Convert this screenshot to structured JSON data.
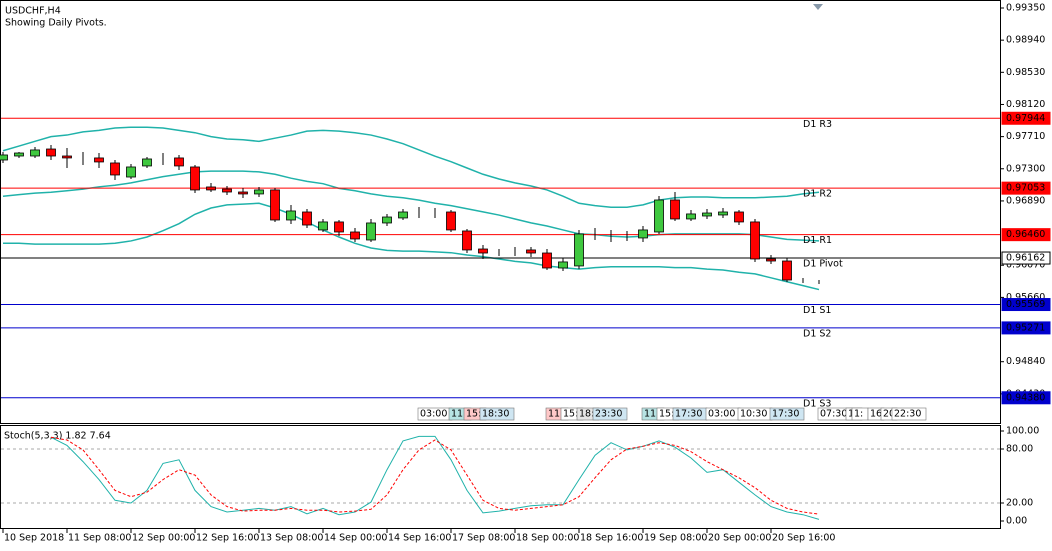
{
  "chart_data": [
    {
      "type": "candlestick",
      "title": "USDCHF,H4",
      "subtitle": "Showing Daily Pivots.",
      "categories": [
        "10 Sep 2018",
        null,
        null,
        null,
        "11 Sep 08:00",
        null,
        null,
        null,
        "12 Sep 00:00",
        null,
        null,
        null,
        "12 Sep 16:00",
        null,
        null,
        null,
        "13 Sep 08:00",
        null,
        null,
        null,
        "14 Sep 00:00",
        null,
        null,
        null,
        "14 Sep 16:00",
        null,
        null,
        null,
        "17 Sep 08:00",
        null,
        null,
        null,
        "18 Sep 00:00",
        null,
        null,
        null,
        "18 Sep 16:00",
        null,
        null,
        null,
        "19 Sep 08:00",
        null,
        null,
        null,
        "20 Sep 00:00",
        null,
        null,
        null,
        "20 Sep 16:00",
        null,
        null,
        null
      ],
      "open": [
        0.97412,
        0.97463,
        0.97463,
        0.97552,
        0.97463,
        0.97438,
        0.97438,
        0.97374,
        0.97195,
        0.97336,
        0.97438,
        0.97438,
        0.97323,
        0.97068,
        0.97042,
        0.97004,
        0.96979,
        0.9703,
        0.96647,
        0.96749,
        0.9652,
        0.96622,
        0.96494,
        0.96392,
        0.96609,
        0.96673,
        0.96749,
        0.96736,
        0.96749,
        0.96507,
        0.96277,
        0.96239,
        0.96252,
        0.96265,
        0.96226,
        0.96035,
        0.96061,
        0.96469,
        0.96443,
        0.96443,
        0.96418,
        0.96494,
        0.96902,
        0.9666,
        0.96698,
        0.96711,
        0.96749,
        0.96622,
        0.9615,
        0.96124,
        0.95869,
        0.95857
      ],
      "high": [
        0.97514,
        0.97514,
        0.97578,
        0.97603,
        0.97565,
        0.97514,
        0.97501,
        0.97412,
        0.97361,
        0.9745,
        0.97501,
        0.97476,
        0.97348,
        0.97119,
        0.97081,
        0.97055,
        0.97068,
        0.97055,
        0.96838,
        0.96787,
        0.9666,
        0.96647,
        0.96545,
        0.9666,
        0.96724,
        0.96787,
        0.96813,
        0.968,
        0.96775,
        0.96532,
        0.96328,
        0.96277,
        0.96303,
        0.96303,
        0.96277,
        0.96163,
        0.9652,
        0.96545,
        0.9652,
        0.96507,
        0.96571,
        0.96953,
        0.97004,
        0.96775,
        0.96787,
        0.968,
        0.96775,
        0.9666,
        0.96201,
        0.96163,
        0.95908,
        0.95882
      ],
      "low": [
        0.97374,
        0.97438,
        0.97438,
        0.97412,
        0.9731,
        0.97348,
        0.9731,
        0.97157,
        0.9717,
        0.9731,
        0.97348,
        0.97285,
        0.96991,
        0.97004,
        0.96966,
        0.96928,
        0.9694,
        0.96622,
        0.96596,
        0.96545,
        0.96494,
        0.96443,
        0.96367,
        0.96367,
        0.96571,
        0.96647,
        0.96673,
        0.96673,
        0.96494,
        0.96226,
        0.9615,
        0.96188,
        0.96188,
        0.96175,
        0.9601,
        0.95997,
        0.96022,
        0.96392,
        0.96367,
        0.96379,
        0.96367,
        0.96469,
        0.96634,
        0.96634,
        0.9666,
        0.96673,
        0.96583,
        0.96112,
        0.96086,
        0.95857,
        0.95844,
        0.95831
      ],
      "close": [
        0.97476,
        0.97501,
        0.9754,
        0.97463,
        0.97438,
        0.97438,
        0.97387,
        0.97221,
        0.97323,
        0.97425,
        0.97438,
        0.97336,
        0.9703,
        0.9703,
        0.97004,
        0.96979,
        0.9703,
        0.96647,
        0.96762,
        0.96583,
        0.96622,
        0.96494,
        0.96405,
        0.96609,
        0.96685,
        0.96749,
        0.96749,
        0.96736,
        0.9652,
        0.96265,
        0.96226,
        0.96239,
        0.96252,
        0.96226,
        0.96035,
        0.96112,
        0.96469,
        0.96469,
        0.96443,
        0.96443,
        0.9652,
        0.96902,
        0.9666,
        0.96724,
        0.96736,
        0.96749,
        0.96622,
        0.9615,
        0.96124,
        0.95882,
        0.95869,
        0.95857
      ],
      "up_color": "#3fc83f",
      "down_color": "#ff0000",
      "series": [
        {
          "color": "#20b2aa",
          "values": [
            0.9753,
            0.9759,
            0.9765,
            0.9771,
            0.9773,
            0.9777,
            0.9779,
            0.9782,
            0.9783,
            0.9783,
            0.9782,
            0.9779,
            0.9776,
            0.9771,
            0.9768,
            0.9767,
            0.9765,
            0.9769,
            0.9773,
            0.9778,
            0.9779,
            0.9778,
            0.9776,
            0.9773,
            0.9768,
            0.9762,
            0.9754,
            0.9746,
            0.9739,
            0.9731,
            0.9723,
            0.9717,
            0.9712,
            0.9708,
            0.9703,
            0.9695,
            0.9686,
            0.9683,
            0.9681,
            0.9681,
            0.9684,
            0.969,
            0.9693,
            0.9694,
            0.9694,
            0.9693,
            0.9693,
            0.9693,
            0.9694,
            0.9695,
            0.9698,
            0.97
          ]
        },
        {
          "color": "#20b2aa",
          "values": [
            0.9695,
            0.9697,
            0.9699,
            0.97,
            0.9702,
            0.9704,
            0.9707,
            0.9709,
            0.9712,
            0.9716,
            0.972,
            0.9723,
            0.9726,
            0.9727,
            0.9727,
            0.9727,
            0.9726,
            0.9723,
            0.9718,
            0.9714,
            0.9711,
            0.9705,
            0.9702,
            0.9698,
            0.9695,
            0.9693,
            0.969,
            0.9686,
            0.9683,
            0.9679,
            0.9675,
            0.9671,
            0.9666,
            0.9661,
            0.9657,
            0.9652,
            0.9647,
            0.9646,
            0.9644,
            0.9643,
            0.9644,
            0.9646,
            0.9647,
            0.9647,
            0.9647,
            0.9647,
            0.9647,
            0.9646,
            0.9643,
            0.964,
            0.9639,
            0.9638
          ]
        },
        {
          "color": "#20b2aa",
          "values": [
            0.9635,
            0.9635,
            0.9634,
            0.9634,
            0.9634,
            0.9634,
            0.9634,
            0.9635,
            0.9638,
            0.9643,
            0.9651,
            0.966,
            0.9672,
            0.968,
            0.9684,
            0.9685,
            0.9686,
            0.968,
            0.9672,
            0.9662,
            0.9652,
            0.9643,
            0.9635,
            0.9629,
            0.9626,
            0.9625,
            0.9625,
            0.9624,
            0.9623,
            0.962,
            0.9618,
            0.9615,
            0.9612,
            0.961,
            0.9606,
            0.9604,
            0.9602,
            0.9604,
            0.9605,
            0.9605,
            0.9605,
            0.9605,
            0.9604,
            0.9604,
            0.9602,
            0.9601,
            0.9598,
            0.9596,
            0.9591,
            0.9586,
            0.9581,
            0.9576
          ]
        }
      ],
      "levels": {
        "names": [
          "D1 R3",
          "D1 R2",
          "D1 R1",
          "D1 Pivot",
          "D1 S1",
          "D1 S2",
          "D1 S3"
        ],
        "values": [
          0.97944,
          0.97053,
          0.9646,
          0.96162,
          0.95569,
          0.95271,
          0.9438
        ],
        "value_labels": [
          "0.97944",
          "0.97053",
          "0.96460",
          "0.96162",
          "0.95569",
          "0.95271",
          "0.94380"
        ],
        "colors": [
          "#ff0000",
          "#ff0000",
          "#ff0000",
          "#000000",
          "#0000cd",
          "#0000cd",
          "#0000cd"
        ]
      },
      "time_markers": [
        {
          "text": "03:00",
          "color": "#ffffff"
        },
        {
          "text": "11:",
          "color": "#b7e3e3"
        },
        {
          "text": "15:",
          "color": "#ffc8c8"
        },
        {
          "text": "18:30",
          "color": "#cfe6f2"
        },
        {
          "text": "11:",
          "color": "#ffc8c8"
        },
        {
          "text": "15:",
          "color": "#ffffff"
        },
        {
          "text": "18:",
          "color": "#e6e6e6"
        },
        {
          "text": "23:30",
          "color": "#cfe6f2"
        },
        {
          "text": "11:",
          "color": "#b7e3e3"
        },
        {
          "text": "15:",
          "color": "#ffffff"
        },
        {
          "text": "17:30",
          "color": "#cfe6f2"
        },
        {
          "text": "03:00",
          "color": "#ffffff"
        },
        {
          "text": "10:30",
          "color": "#ffffff"
        },
        {
          "text": "17:30",
          "color": "#cfe6f2"
        },
        {
          "text": "07:30",
          "color": "#ffffff"
        },
        {
          "text": "1:",
          "color": "#ffffff"
        },
        {
          "text": "1:",
          "color": "#ffffff"
        },
        {
          "text": "16",
          "color": "#ffffff"
        },
        {
          "text": "20",
          "color": "#ffffff"
        },
        {
          "text": "22:30",
          "color": "#ffffff"
        }
      ],
      "ylim": [
        0.94084,
        0.99452
      ],
      "yticks": [
        {
          "value": 0.9935,
          "label": "0.99350"
        },
        {
          "value": 0.9894,
          "label": "0.98940"
        },
        {
          "value": 0.9853,
          "label": "0.98530"
        },
        {
          "value": 0.9812,
          "label": "0.98120"
        },
        {
          "value": 0.9771,
          "label": "0.97710"
        },
        {
          "value": 0.973,
          "label": "0.97300"
        },
        {
          "value": 0.9689,
          "label": "0.96890"
        },
        {
          "value": 0.9607,
          "label": "0.96070"
        },
        {
          "value": 0.9566,
          "label": "0.95660"
        },
        {
          "value": 0.9484,
          "label": "0.94840"
        },
        {
          "value": 0.9443,
          "label": "0.94430"
        }
      ],
      "grid": false
    },
    {
      "type": "line",
      "title": "Stoch(5,3,3) 1.82 7.64",
      "series": [
        {
          "color": "#20b2aa",
          "dash": false,
          "values": [
            null,
            null,
            null,
            93,
            84,
            66,
            46,
            23,
            20,
            34,
            64,
            68,
            34,
            16,
            10,
            12,
            14,
            12,
            16,
            8,
            14,
            7,
            10,
            21,
            57,
            89,
            94,
            94,
            68,
            34,
            9,
            11,
            14,
            17,
            18,
            18,
            46,
            73,
            87,
            79,
            83,
            89,
            82,
            70,
            54,
            57,
            43,
            29,
            16,
            10,
            7,
            1.82
          ]
        },
        {
          "color": "#ff0000",
          "dash": true,
          "values": [
            null,
            null,
            null,
            93,
            90,
            79,
            57,
            34,
            27,
            32,
            46,
            57,
            51,
            29,
            16,
            11,
            12,
            12,
            14,
            12,
            12,
            10,
            11,
            13,
            29,
            57,
            79,
            90,
            79,
            51,
            23,
            14,
            12,
            14,
            16,
            18,
            27,
            48,
            68,
            80,
            83,
            87,
            84,
            77,
            66,
            57,
            48,
            37,
            23,
            14,
            10,
            7.64
          ]
        }
      ],
      "levels": [
        80,
        20
      ],
      "ylim": [
        0,
        100
      ],
      "yticks": [
        {
          "value": 100,
          "label": "100.00"
        },
        {
          "value": 80,
          "label": "80.00"
        },
        {
          "value": 20,
          "label": "20.00"
        },
        {
          "value": 0,
          "label": "0.00"
        }
      ]
    }
  ]
}
